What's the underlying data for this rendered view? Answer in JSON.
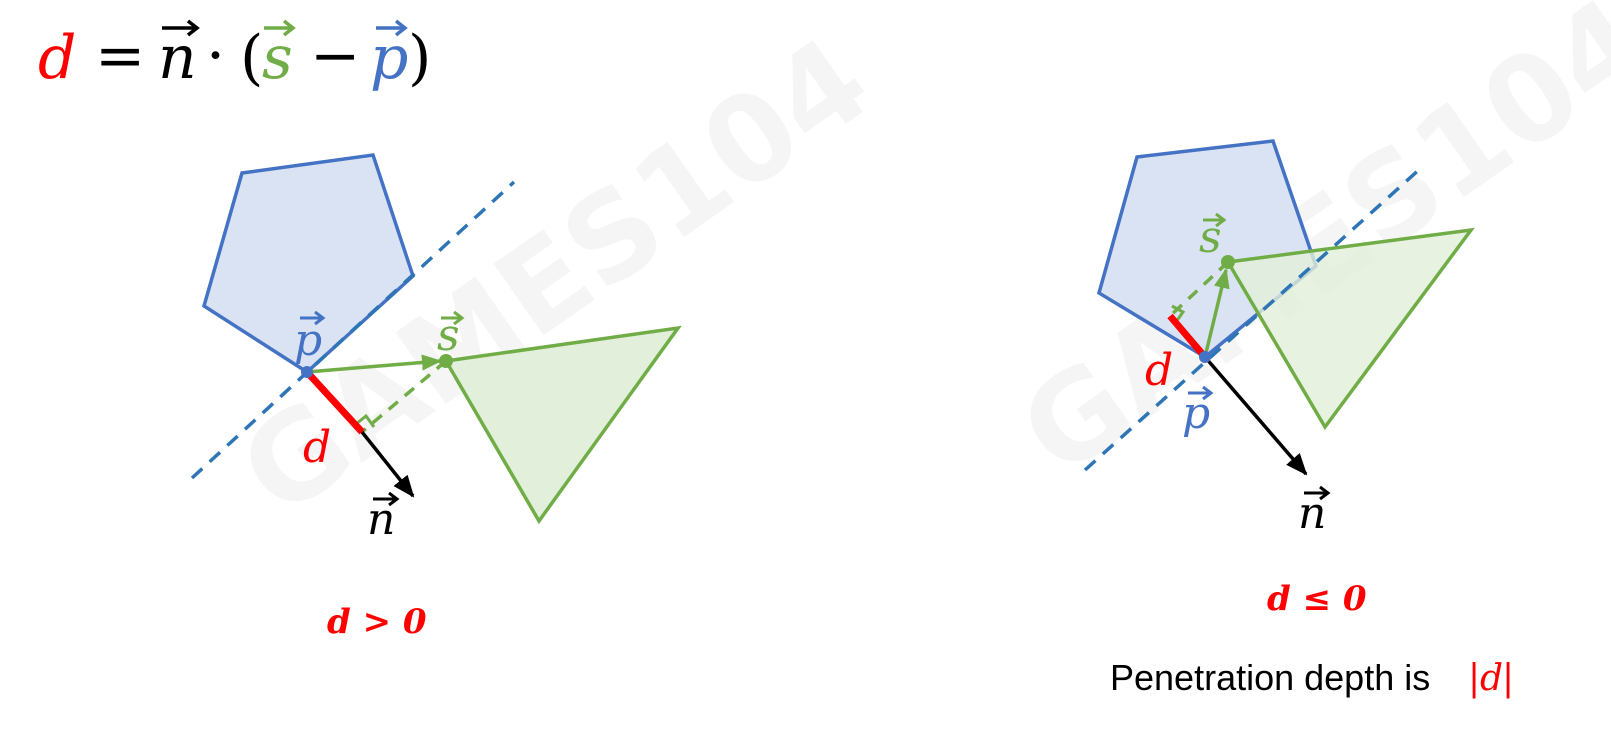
{
  "formula": {
    "d": "d",
    "eq": "=",
    "n": "n",
    "dot": "·",
    "lparen": "(",
    "s": "s",
    "minus": "−",
    "p": "p",
    "rparen": ")",
    "arrow": "⃗"
  },
  "left_panel": {
    "label_p": "p",
    "label_s": "s",
    "label_d": "d",
    "label_n": "n",
    "condition": "d > 0"
  },
  "right_panel": {
    "label_p": "p",
    "label_s": "s",
    "label_d": "d",
    "label_n": "n",
    "condition": "d ≤ 0",
    "caption_text": "Penetration depth is ",
    "caption_abs_open": "|",
    "caption_abs_var": "d",
    "caption_abs_close": "|"
  },
  "watermark": "GAMES104",
  "colors": {
    "red": "#ff0000",
    "blue_shape": "#4472c4",
    "blue_fill": "#dae3f3",
    "green_shape": "#70ad47",
    "green_fill": "#e2efda",
    "dashed_line": "#2e75b6",
    "black": "#000000"
  }
}
